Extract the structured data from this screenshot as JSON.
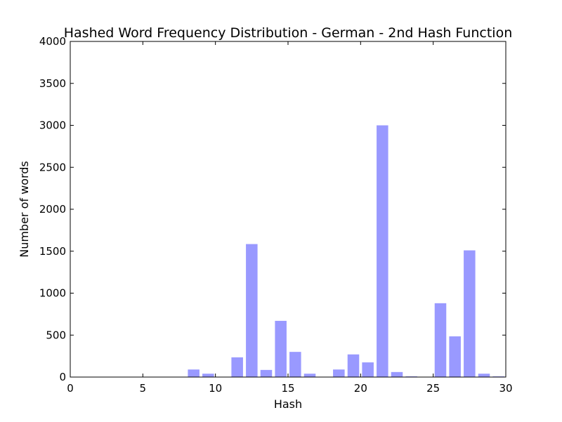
{
  "chart_data": {
    "type": "bar",
    "title": "Hashed Word Frequency Distribution - German - 2nd Hash Function",
    "xlabel": "Hash",
    "ylabel": "Number of words",
    "xlim": [
      0,
      30
    ],
    "ylim": [
      0,
      4000
    ],
    "xticks": [
      0,
      5,
      10,
      15,
      20,
      25,
      30
    ],
    "yticks": [
      0,
      500,
      1000,
      1500,
      2000,
      2500,
      3000,
      3500,
      4000
    ],
    "bar_color": "#9999ff",
    "grid": false,
    "categories": [
      0,
      1,
      2,
      3,
      4,
      5,
      6,
      7,
      8,
      9,
      10,
      11,
      12,
      13,
      14,
      15,
      16,
      17,
      18,
      19,
      20,
      21,
      22,
      23,
      24,
      25,
      26,
      27,
      28,
      29
    ],
    "values": [
      0,
      0,
      0,
      0,
      0,
      0,
      0,
      0,
      90,
      40,
      0,
      235,
      1585,
      85,
      670,
      300,
      40,
      0,
      90,
      270,
      175,
      3000,
      60,
      8,
      0,
      880,
      485,
      1510,
      40,
      8
    ]
  }
}
